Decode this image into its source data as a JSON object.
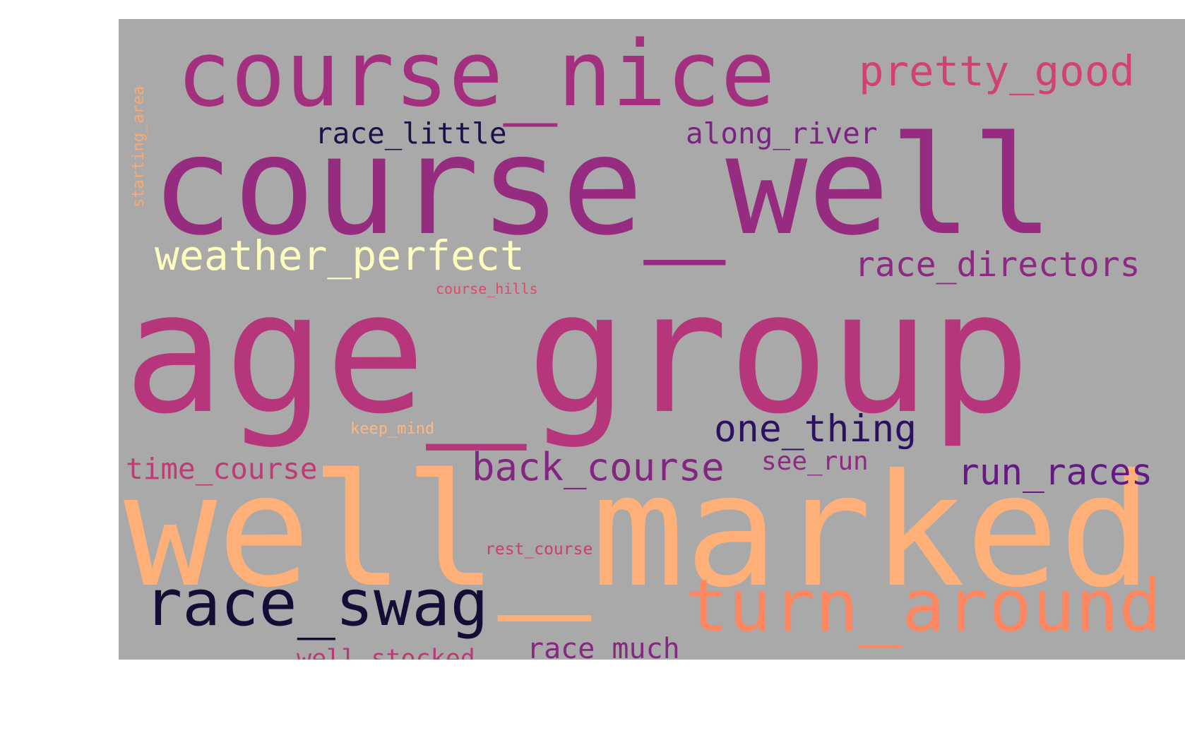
{
  "wordcloud": {
    "words": [
      {
        "id": "age_group",
        "text": "age_group",
        "color": "#b5367a"
      },
      {
        "id": "well_marked",
        "text": "well_marked",
        "color": "#feb078"
      },
      {
        "id": "course_well",
        "text": "course_well",
        "color": "#962c80"
      },
      {
        "id": "course_nice",
        "text": "course_nice",
        "color": "#a3307e"
      },
      {
        "id": "turn_around",
        "text": "turn_around",
        "color": "#fc8761"
      },
      {
        "id": "race_swag",
        "text": "race_swag",
        "color": "#140e36"
      },
      {
        "id": "pretty_good",
        "text": "pretty_good",
        "color": "#d0426f"
      },
      {
        "id": "weather_perfect",
        "text": "weather_perfect",
        "color": "#fcfdbf"
      },
      {
        "id": "race_directors",
        "text": "race_directors",
        "color": "#8c2981"
      },
      {
        "id": "back_course",
        "text": "back_course",
        "color": "#832681"
      },
      {
        "id": "one_thing",
        "text": "one_thing",
        "color": "#2d1160"
      },
      {
        "id": "run_races",
        "text": "run_races",
        "color": "#641a80"
      },
      {
        "id": "race_little",
        "text": "race_little",
        "color": "#1d1147"
      },
      {
        "id": "along_river",
        "text": "along_river",
        "color": "#7b2382"
      },
      {
        "id": "time_course",
        "text": "time_course",
        "color": "#c13a76"
      },
      {
        "id": "race_much",
        "text": "race_much",
        "color": "#862781"
      },
      {
        "id": "well_stocked",
        "text": "well_stocked",
        "color": "#bc3978"
      },
      {
        "id": "see_run",
        "text": "see_run",
        "color": "#8e2a81"
      },
      {
        "id": "keep_mind",
        "text": "keep_mind",
        "color": "#fdb880"
      },
      {
        "id": "rest_course",
        "text": "rest_course",
        "color": "#c83e73"
      },
      {
        "id": "course_hills",
        "text": "course_hills",
        "color": "#dd4968"
      },
      {
        "id": "starting_area",
        "text": "starting_area",
        "color": "#fca874"
      }
    ]
  }
}
